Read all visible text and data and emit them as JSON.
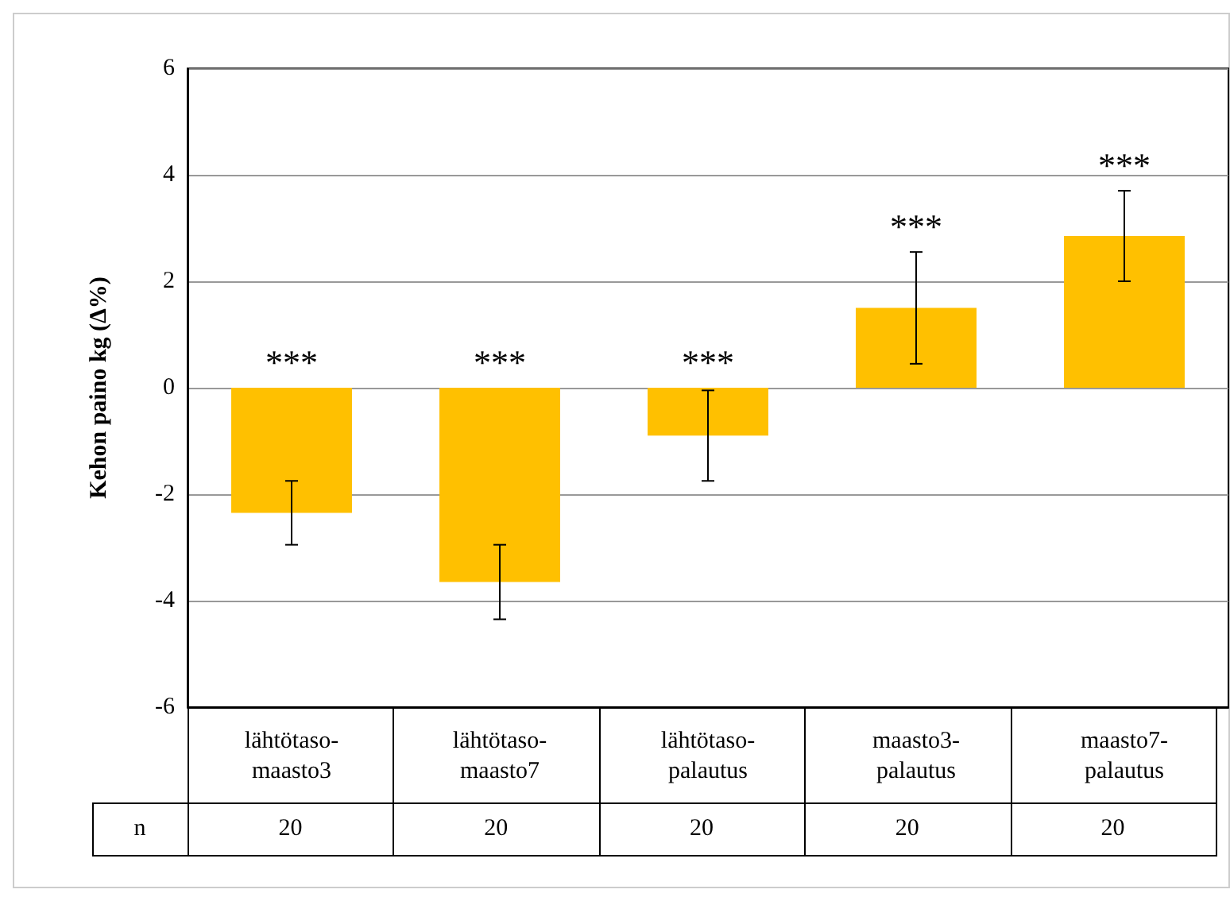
{
  "chart_data": {
    "type": "bar",
    "ylabel": "Kehon paino kg (Δ%)",
    "categories": [
      "lähtötaso-maasto3",
      "lähtötaso-maasto7",
      "lähtötaso-palautus",
      "maasto3-palautus",
      "maasto7-palautus"
    ],
    "values": [
      -2.35,
      -3.65,
      -0.9,
      1.5,
      2.85
    ],
    "errors": [
      0.6,
      0.7,
      0.85,
      1.05,
      0.85
    ],
    "color": "#ffc000",
    "ylim": [
      -6,
      6
    ],
    "yticks": [
      -6,
      -4,
      -2,
      0,
      2,
      4,
      6
    ],
    "grid": "y",
    "annotations": [
      "***",
      "***",
      "***",
      "***",
      "***",
      "n",
      "20",
      "20",
      "20",
      "20",
      "20"
    ]
  }
}
